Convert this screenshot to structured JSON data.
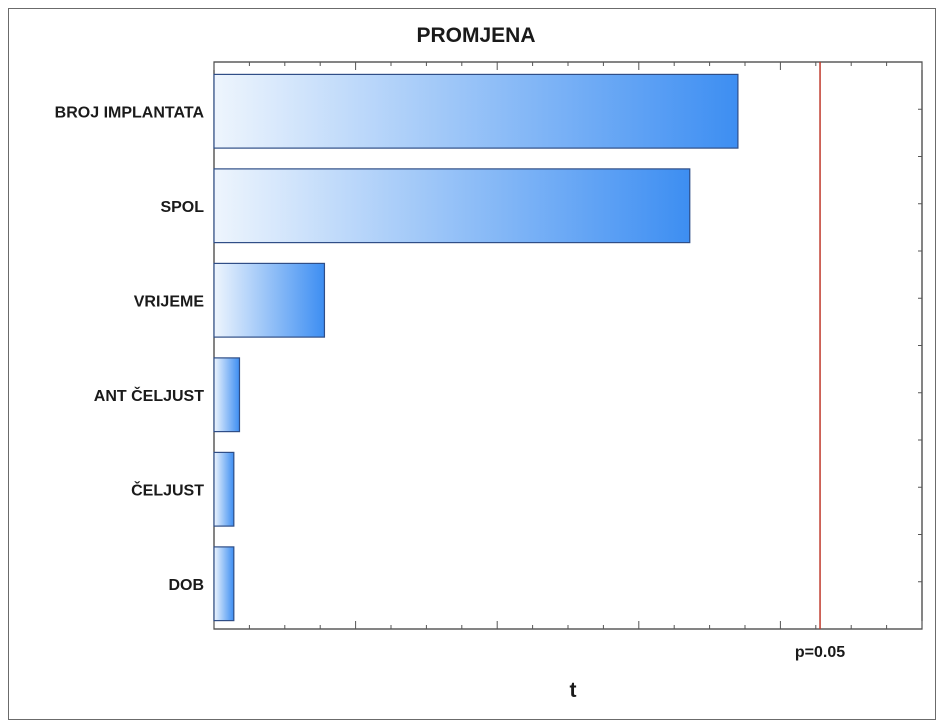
{
  "chart_data": {
    "type": "bar",
    "orientation": "horizontal",
    "title": "PROMJENA",
    "xlabel": "t",
    "ylabel": "",
    "categories": [
      "BROJ IMPLANTATA",
      "SPOL",
      "VRIJEME",
      "ANT ČELJUST",
      "ČELJUST",
      "DOB"
    ],
    "values": [
      1.85,
      1.68,
      0.39,
      0.09,
      0.07,
      0.07
    ],
    "xlim": [
      0,
      2.5
    ],
    "reference_line": {
      "value": 2.14,
      "label": "p=0.05",
      "color": "#c0392b"
    },
    "grid": false,
    "bar_gradient": {
      "from": "#eef5fd",
      "to": "#3d8ef2"
    },
    "bar_edge_color": "#2f4e87"
  }
}
